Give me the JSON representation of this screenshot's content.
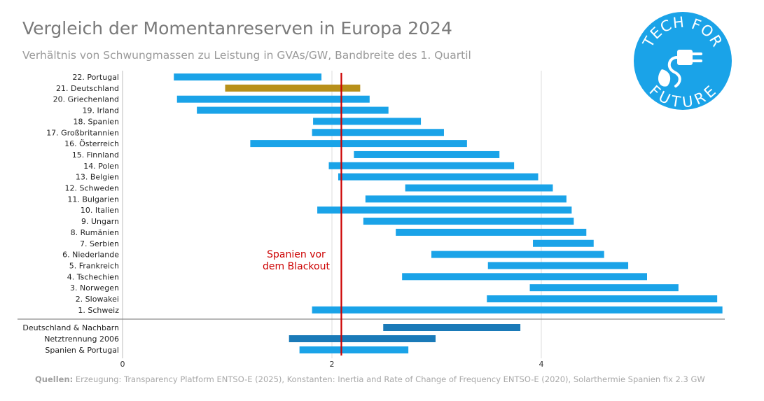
{
  "title": "Vergleich der Momentanreserven in Europa 2024",
  "subtitle": "Verhältnis von Schwungmassen zu Leistung in GVAs/GW, Bandbreite des 1. Quartil",
  "logo": {
    "top_text": "TECH FOR",
    "bottom_text": "FUTURE",
    "color": "#1aa3e8",
    "icon": "plug-leaf-icon"
  },
  "source": {
    "label": "Quellen:",
    "text": " Erzeugung: Transparency Platform ENTSO-E (2025), Konstanten: Inertia and Rate of Change of Frequency ENTSO-E (2020), Solarthermie Spanien fix 2.3 GW"
  },
  "chart_data": {
    "type": "bar",
    "orientation": "horizontal-range",
    "xlim": [
      0,
      5.75
    ],
    "xticks": [
      0,
      2,
      4
    ],
    "grid": true,
    "colors": {
      "default": "#1aa3e8",
      "highlight": "#b8901a",
      "group": "#1a7ab8",
      "marker": "#cc0000"
    },
    "rows": [
      {
        "label": "22. Portugal",
        "low": 0.49,
        "high": 1.9,
        "style": "default"
      },
      {
        "label": "21. Deutschland",
        "low": 0.98,
        "high": 2.27,
        "style": "highlight"
      },
      {
        "label": "20. Griechenland",
        "low": 0.52,
        "high": 2.36,
        "style": "default"
      },
      {
        "label": "19. Irland",
        "low": 0.71,
        "high": 2.54,
        "style": "default"
      },
      {
        "label": "18. Spanien",
        "low": 1.82,
        "high": 2.85,
        "style": "default"
      },
      {
        "label": "17. Großbritannien",
        "low": 1.81,
        "high": 3.07,
        "style": "default"
      },
      {
        "label": "16. Österreich",
        "low": 1.22,
        "high": 3.29,
        "style": "default"
      },
      {
        "label": "15. Finnland",
        "low": 2.21,
        "high": 3.6,
        "style": "default"
      },
      {
        "label": "14. Polen",
        "low": 1.97,
        "high": 3.74,
        "style": "default"
      },
      {
        "label": "13. Belgien",
        "low": 2.06,
        "high": 3.97,
        "style": "default"
      },
      {
        "label": "12. Schweden",
        "low": 2.7,
        "high": 4.11,
        "style": "default"
      },
      {
        "label": "11. Bulgarien",
        "low": 2.32,
        "high": 4.24,
        "style": "default"
      },
      {
        "label": "10. Italien",
        "low": 1.86,
        "high": 4.29,
        "style": "default"
      },
      {
        "label": "9. Ungarn",
        "low": 2.3,
        "high": 4.31,
        "style": "default"
      },
      {
        "label": "8. Rumänien",
        "low": 2.61,
        "high": 4.43,
        "style": "default"
      },
      {
        "label": "7. Serbien",
        "low": 3.92,
        "high": 4.5,
        "style": "default"
      },
      {
        "label": "6. Niederlande",
        "low": 2.95,
        "high": 4.6,
        "style": "default"
      },
      {
        "label": "5. Frankreich",
        "low": 3.49,
        "high": 4.83,
        "style": "default"
      },
      {
        "label": "4. Tschechien",
        "low": 2.67,
        "high": 5.01,
        "style": "default"
      },
      {
        "label": "3. Norwegen",
        "low": 3.89,
        "high": 5.31,
        "style": "default"
      },
      {
        "label": "2. Slowakei",
        "low": 3.48,
        "high": 5.68,
        "style": "default"
      },
      {
        "label": "1. Schweiz",
        "low": 1.81,
        "high": 5.73,
        "style": "default"
      }
    ],
    "group_rows": [
      {
        "label": "Deutschland & Nachbarn",
        "low": 2.49,
        "high": 3.8,
        "style": "group"
      },
      {
        "label": "Netztrennung 2006",
        "low": 1.59,
        "high": 2.99,
        "style": "group"
      },
      {
        "label": "Spanien & Portugal",
        "low": 1.69,
        "high": 2.73,
        "style": "default"
      }
    ],
    "reference_line": {
      "x": 2.09,
      "annotation": [
        "Spanien vor",
        "dem Blackout"
      ]
    }
  }
}
